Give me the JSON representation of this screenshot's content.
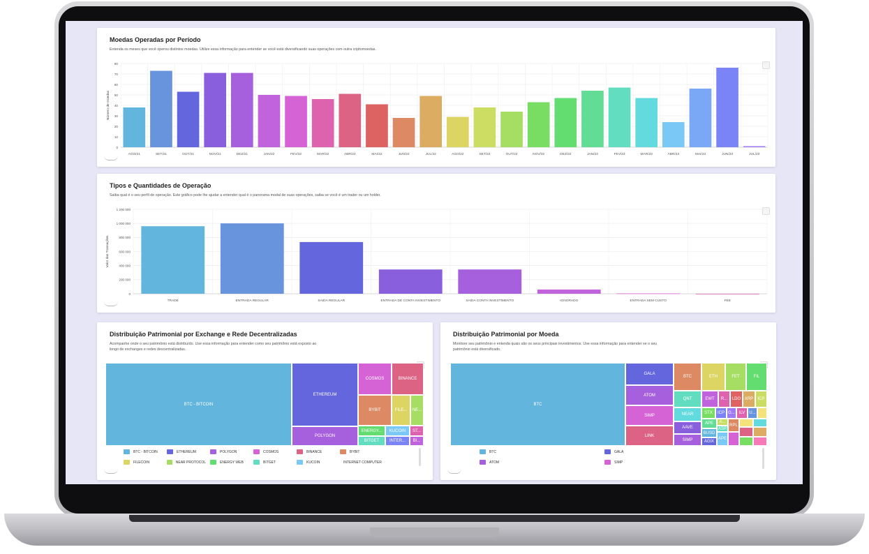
{
  "card1": {
    "title": "Moedas Operadas por Período",
    "subtitle": "Entenda os meses que você operou distintos moedas. Utilize essa informação para entender se você está diversificando suas operações com outra criptomoedas.",
    "chart_data": {
      "type": "bar",
      "categories": [
        "AGO/21",
        "SET/21",
        "OUT/21",
        "NOV/21",
        "DEZ/21",
        "JAN/22",
        "FEV/22",
        "MAR/22",
        "ABR/22",
        "MAI/22",
        "JUN/22",
        "JUL/22",
        "AGO/22",
        "SET/22",
        "OUT/22",
        "NOV/22",
        "DEZ/22",
        "JAN/23",
        "FEV/23",
        "MAR/23",
        "ABR/23",
        "MAI/23",
        "JUN/23",
        "JUL/23"
      ],
      "values": [
        38,
        73,
        53,
        71,
        71,
        50,
        49,
        46,
        51,
        41,
        28,
        49,
        29,
        38,
        34,
        43,
        47,
        54,
        57,
        47,
        24,
        56,
        76,
        1
      ],
      "colors": [
        "#62b5dd",
        "#6893dd",
        "#6466dd",
        "#8a5fdd",
        "#a65fdd",
        "#c163dd",
        "#d563d5",
        "#dd63ae",
        "#dd6385",
        "#dd6363",
        "#dd8963",
        "#ddac63",
        "#ddd563",
        "#cbdd63",
        "#a6dd63",
        "#79dd63",
        "#63dd6f",
        "#63dd95",
        "#63ddbf",
        "#63dadd",
        "#7ac8f6",
        "#7aa8f6",
        "#7a84f6",
        "#a07af6"
      ],
      "ylabel": "Número de moedas",
      "ylim": [
        0,
        80
      ],
      "yticks": [
        0,
        10,
        20,
        30,
        40,
        50,
        60,
        70,
        80
      ],
      "grid": true
    }
  },
  "card2": {
    "title": "Tipos e Quantidades de Operação",
    "subtitle": "Saiba qual é o seu perfil de operação. Este gráfico pode lhe ajudar a entender qual é o panorama modal de suas operações, saiba se você é um trader ou um holder.",
    "chart_data": {
      "type": "bar",
      "categories": [
        "TRADE",
        "ENTRADA REGULAR",
        "SAIDA REGULAR",
        "ENTRADA DE CONTA INVESTIMENTO",
        "SAIDA CONTA INVESTIMENTO",
        "IGNORADO",
        "ENTRADA SEM CUSTO",
        "FEE"
      ],
      "values": [
        960000,
        1000000,
        735000,
        345000,
        345000,
        60000,
        5000,
        0
      ],
      "colors": [
        "#62b5dd",
        "#6893dd",
        "#6466dd",
        "#8a5fdd",
        "#a65fdd",
        "#c163dd",
        "#d563d5",
        "#dd63ae"
      ],
      "ylabel": "Valor das Transações",
      "ylim": [
        0,
        1200000
      ],
      "yticks": [
        0,
        200000,
        400000,
        600000,
        800000,
        1000000,
        1200000
      ],
      "yticklabels": [
        "0",
        "200 000",
        "400 000",
        "600 000",
        "800 000",
        "1 000 000",
        "1 200 000"
      ],
      "grid": true
    }
  },
  "card3": {
    "title": "Distribuição Patrimonial por Exchange e Rede Decentralizadas",
    "subtitle": "Acompanhe onde o seu patrimônio está distribuído. Use essa informação para entender como seu patrimônio está exposto ao longo de exchanges e redes descentralizadas.",
    "treemap_labels": {
      "btc": "BTC - BITCOIN",
      "ethereum": "ETHEREUM",
      "polygon": "POLYGON",
      "cosmos": "COSMOS",
      "binance": "BINANCE",
      "bybit": "BYBIT",
      "filecoin": "FILE...",
      "near": "NE...",
      "energy": "ENERGY...",
      "kucoin": "KUCOIN",
      "st": "ST...",
      "bitget": "BITGET",
      "inter": "INTER...",
      "bi": "BI..."
    },
    "legend": [
      {
        "label": "BTC - BITCOIN",
        "color": "#62b5dd"
      },
      {
        "label": "ETHEREUM",
        "color": "#6466dd"
      },
      {
        "label": "POLYGON",
        "color": "#a65fdd"
      },
      {
        "label": "COSMOS",
        "color": "#d563d5"
      },
      {
        "label": "BINANCE",
        "color": "#dd6385"
      },
      {
        "label": "BYBIT",
        "color": "#dd8963"
      },
      {
        "label": "FILECOIN",
        "color": "#ddd563"
      },
      {
        "label": "NEAR PROTOCOL",
        "color": "#a6dd63"
      },
      {
        "label": "ENERGY WEB",
        "color": "#63dd6f"
      },
      {
        "label": "BITGET",
        "color": "#63ddbf"
      },
      {
        "label": "KUCOIN",
        "color": "#7ac8f6"
      },
      {
        "label": "INTERNET COMPUTER",
        "color": "#7a84f6"
      }
    ]
  },
  "card4": {
    "title": "Distribuição Patrimonial por Moeda",
    "subtitle": "Monitore seu patrimônio e entenda quais são os seus principais investimentos. Use essa informação para entender se o seu patrimônio está diversificado.",
    "treemap_labels": {
      "btc": "BTC",
      "gala": "GALA",
      "atom": "ATOM",
      "simp": "SIMP",
      "link": "LINK",
      "btc2": "BTC",
      "eth": "ETH",
      "fet": "FET",
      "fil": "FIL",
      "qnt": "QNT",
      "ewt": "EWT",
      "r": "R...",
      "ldo": "LDO",
      "xrp": "XRP",
      "icp": "ICP",
      "near": "NEAR",
      "stx": "STX",
      "icp2": "ICP",
      "g": "G...",
      "ilv": "ILV",
      "u": "U...",
      "aave": "AAVE",
      "ape": "APE",
      "busd": "BUSD",
      "simp2": "SIMP",
      "agix": "AGIX",
      "a": "A...",
      "asr": "ASR",
      "rpl": "RPL",
      "ape2": "APE"
    },
    "legend": [
      {
        "label": "BTC",
        "color": "#62b5dd"
      },
      {
        "label": "GALA",
        "color": "#6466dd"
      },
      {
        "label": "ATOM",
        "color": "#a65fdd"
      },
      {
        "label": "SIMP",
        "color": "#d563d5"
      }
    ]
  }
}
